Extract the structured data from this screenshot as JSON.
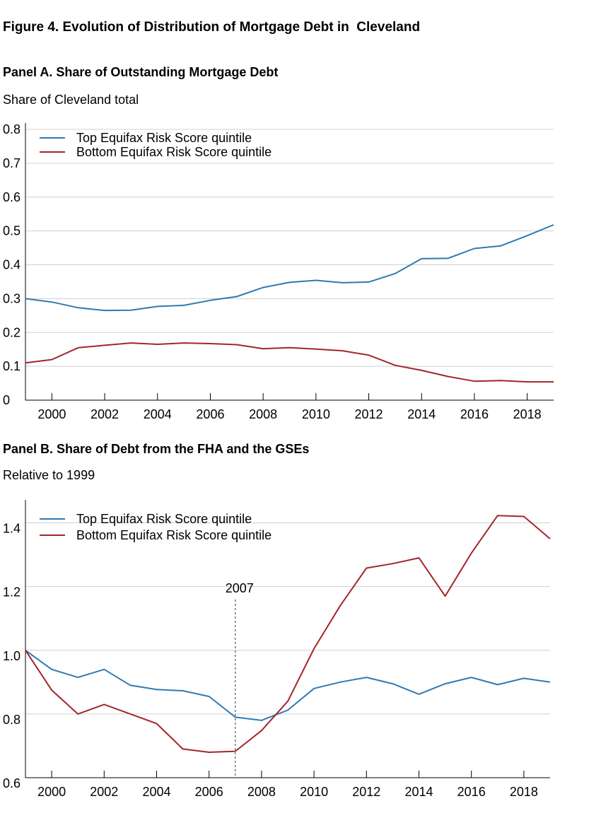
{
  "figure_title": "Figure 4. Evolution of Distribution of Mortgage Debt in  Cleveland",
  "chart_data": [
    {
      "type": "line",
      "title": "Panel A. Share of Outstanding Mortgage Debt",
      "ylabel": "Share of Cleveland total",
      "xlabel": "",
      "ylim": [
        0,
        0.8
      ],
      "xlim": [
        1999,
        2019
      ],
      "y_ticks": [
        "0",
        "0.1",
        "0.2",
        "0.3",
        "0.4",
        "0.5",
        "0.6",
        "0.7",
        "0.8"
      ],
      "x_ticks": [
        "2000",
        "2002",
        "2004",
        "2006",
        "2008",
        "2010",
        "2012",
        "2014",
        "2016",
        "2018"
      ],
      "grid": true,
      "legend_position": "top-left",
      "x": [
        1999,
        2000,
        2001,
        2002,
        2003,
        2004,
        2005,
        2006,
        2007,
        2008,
        2009,
        2010,
        2011,
        2012,
        2013,
        2014,
        2015,
        2016,
        2017,
        2018,
        2019
      ],
      "series": [
        {
          "name": "Top Equifax Risk Score quintile",
          "color": "#2f7ab3",
          "values": [
            0.3,
            0.29,
            0.273,
            0.265,
            0.266,
            0.277,
            0.28,
            0.295,
            0.306,
            0.333,
            0.348,
            0.354,
            0.347,
            0.349,
            0.374,
            0.418,
            0.419,
            0.448,
            0.456,
            0.486,
            0.518
          ]
        },
        {
          "name": "Bottom Equifax Risk Score quintile",
          "color": "#a3262c",
          "values": [
            0.11,
            0.12,
            0.155,
            0.162,
            0.169,
            0.165,
            0.169,
            0.167,
            0.164,
            0.152,
            0.155,
            0.151,
            0.146,
            0.133,
            0.103,
            0.088,
            0.07,
            0.056,
            0.058,
            0.054,
            0.054
          ]
        }
      ]
    },
    {
      "type": "line",
      "title": "Panel B. Share of Debt from the FHA and the GSEs",
      "ylabel": "Relative to 1999",
      "xlabel": "",
      "ylim": [
        0.6,
        1.45
      ],
      "xlim": [
        1999,
        2019
      ],
      "y_ticks": [
        "0.6",
        "0.8",
        "1.0",
        "1.2",
        "1.4"
      ],
      "x_ticks": [
        "2000",
        "2002",
        "2004",
        "2006",
        "2008",
        "2010",
        "2012",
        "2014",
        "2016",
        "2018"
      ],
      "grid": true,
      "legend_position": "top-left",
      "annotation": {
        "label": "2007",
        "x": 2007
      },
      "x": [
        1999,
        2000,
        2001,
        2002,
        2003,
        2004,
        2005,
        2006,
        2007,
        2008,
        2009,
        2010,
        2011,
        2012,
        2013,
        2014,
        2015,
        2016,
        2017,
        2018,
        2019
      ],
      "series": [
        {
          "name": "Top Equifax Risk Score quintile",
          "color": "#2f7ab3",
          "values": [
            1.0,
            0.94,
            0.915,
            0.94,
            0.89,
            0.877,
            0.873,
            0.855,
            0.79,
            0.78,
            0.812,
            0.88,
            0.9,
            0.915,
            0.895,
            0.862,
            0.895,
            0.915,
            0.892,
            0.912,
            0.9
          ]
        },
        {
          "name": "Bottom Equifax Risk Score quintile",
          "color": "#a3262c",
          "values": [
            1.0,
            0.875,
            0.8,
            0.83,
            0.8,
            0.77,
            0.69,
            0.68,
            0.683,
            0.748,
            0.84,
            1.005,
            1.14,
            1.258,
            1.272,
            1.29,
            1.17,
            1.305,
            1.423,
            1.42,
            1.35
          ]
        }
      ]
    }
  ]
}
